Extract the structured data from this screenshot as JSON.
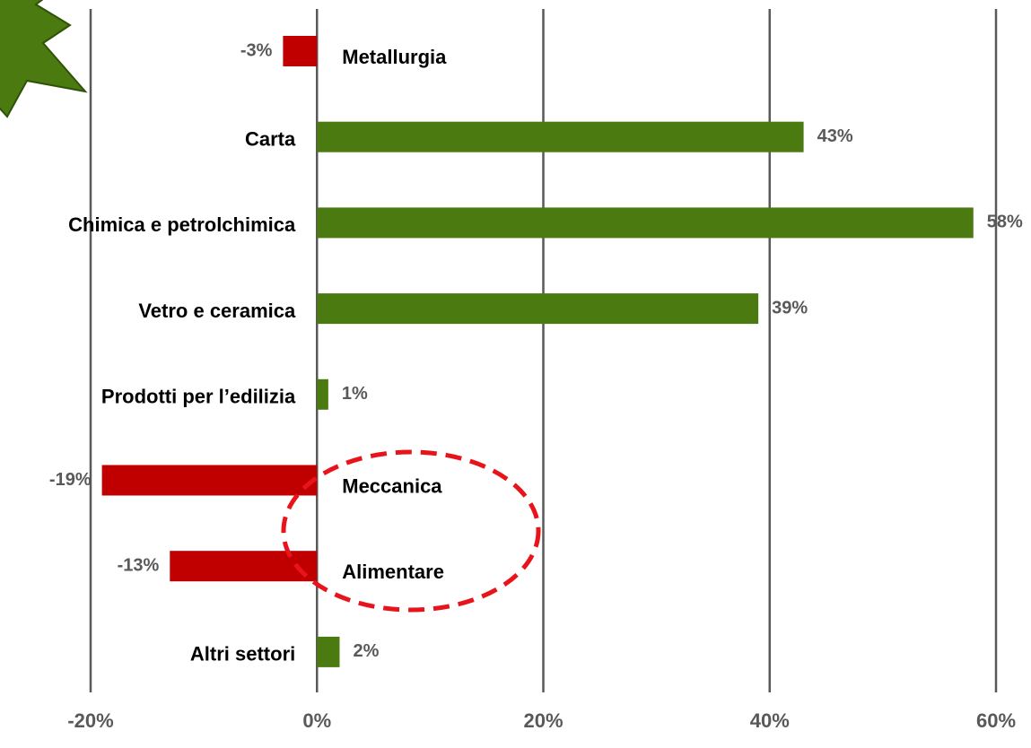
{
  "chart_data": {
    "type": "bar",
    "orientation": "horizontal",
    "categories": [
      "Metallurgia",
      "Carta",
      "Chimica e petrolchimica",
      "Vetro e ceramica",
      "Prodotti per l’edilizia",
      "Meccanica",
      "Alimentare",
      "Altri settori"
    ],
    "values": [
      -3,
      43,
      58,
      39,
      1,
      -19,
      -13,
      2
    ],
    "value_labels": [
      "-3%",
      "43%",
      "58%",
      "39%",
      "1%",
      "-19%",
      "-13%",
      "2%"
    ],
    "colors": [
      "#c00000",
      "#4b7a10",
      "#4b7a10",
      "#4b7a10",
      "#4b7a10",
      "#c00000",
      "#c00000",
      "#4b7a10"
    ],
    "xlim": [
      -20,
      60
    ],
    "xticks": [
      {
        "value": -20,
        "label": "-20%"
      },
      {
        "value": 0,
        "label": "0%"
      },
      {
        "value": 20,
        "label": "20%"
      },
      {
        "value": 40,
        "label": "40%"
      },
      {
        "value": 60,
        "label": "60%"
      }
    ],
    "grid": true
  }
}
